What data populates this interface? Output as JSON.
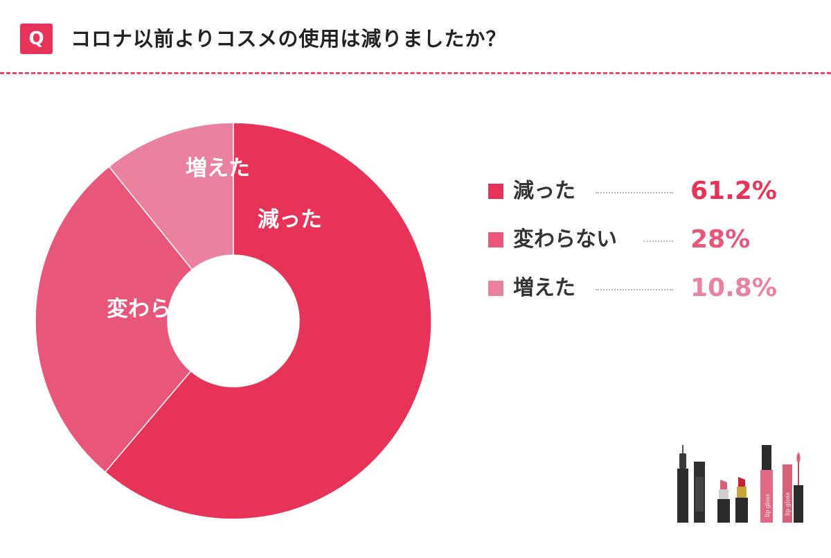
{
  "header": {
    "badge": "Q",
    "question": "コロナ以前よりコスメの使用は減りましたか？"
  },
  "chart_data": {
    "type": "pie",
    "title": "コロナ以前よりコスメの使用は減りましたか？",
    "categories": [
      "減った",
      "変わらない",
      "増えた"
    ],
    "values": [
      61.2,
      28,
      10.8
    ],
    "value_labels": [
      "61.2%",
      "28%",
      "10.8%"
    ],
    "unit": "%",
    "colors": [
      "#e83358",
      "#e8567a",
      "#ea819e"
    ],
    "donut": true,
    "legend_position": "right"
  },
  "legend": [
    {
      "label": "減った",
      "value": "61.2%",
      "color": "#e83358"
    },
    {
      "label": "変わらない",
      "value": "28%",
      "color": "#e8567a"
    },
    {
      "label": "増えた",
      "value": "10.8%",
      "color": "#ea819e"
    }
  ],
  "illustration": {
    "lip_gloss_text": "lip gloss"
  }
}
